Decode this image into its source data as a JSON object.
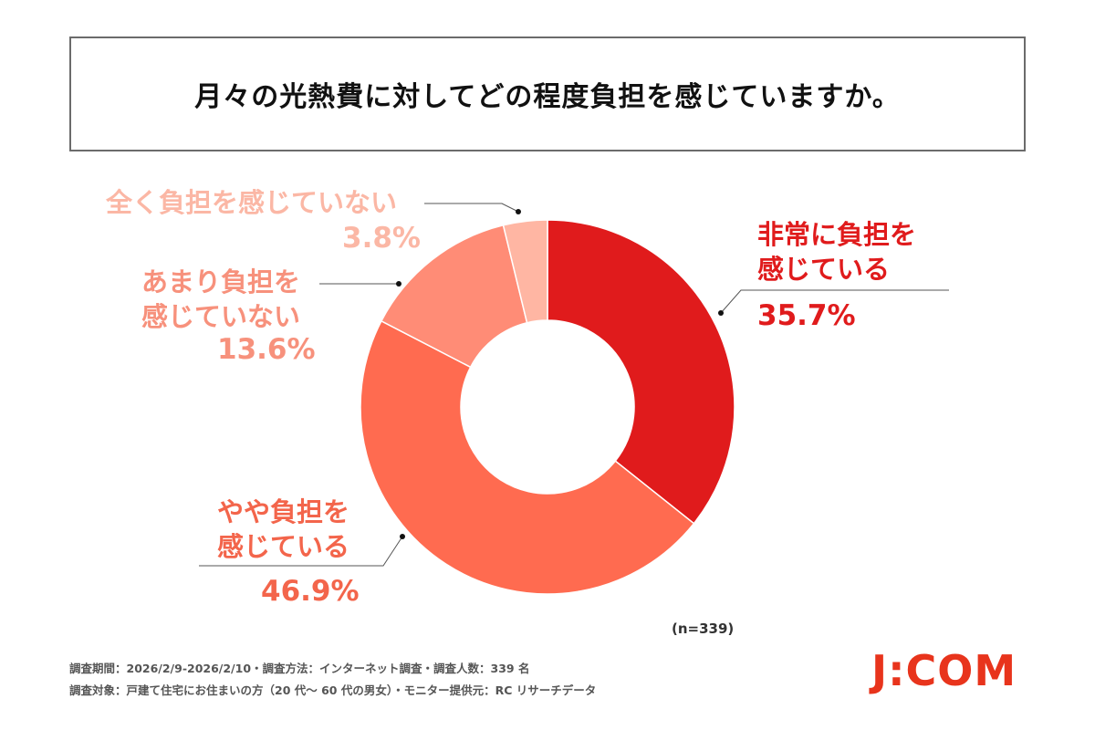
{
  "title": "月々の光熱費に対してどの程度負担を感じていますか。",
  "chart_data": {
    "type": "pie",
    "variant": "donut",
    "start": "top, clockwise",
    "slices": [
      {
        "label_line1": "非常に負担を",
        "label_line2": "感じている",
        "value": 35.7,
        "value_label": "35.7%",
        "color": "#e01b1c",
        "text_color": "#e01b1c"
      },
      {
        "label_line1": "やや負担を",
        "label_line2": "感じている",
        "value": 46.9,
        "value_label": "46.9%",
        "color": "#ff6b50",
        "text_color": "#f3654b"
      },
      {
        "label_line1": "あまり負担を",
        "label_line2": "感じていない",
        "value": 13.6,
        "value_label": "13.6%",
        "color": "#ff8c76",
        "text_color": "#f7917c"
      },
      {
        "label_line1": "全く負担を感じていない",
        "label_line2": "",
        "value": 3.8,
        "value_label": "3.8%",
        "color": "#ffb6a3",
        "text_color": "#fbb7a5"
      }
    ]
  },
  "sample_size": "(n=339)",
  "footer": {
    "line1": "調査期間：2026/2/9-2026/2/10・調査方法：インターネット調査・調査人数：339 名",
    "line2": "調査対象：戸建て住宅にお住まいの方（20 代～ 60 代の男女）・モニター提供元：RC リサーチデータ"
  },
  "logo": "J:COM"
}
